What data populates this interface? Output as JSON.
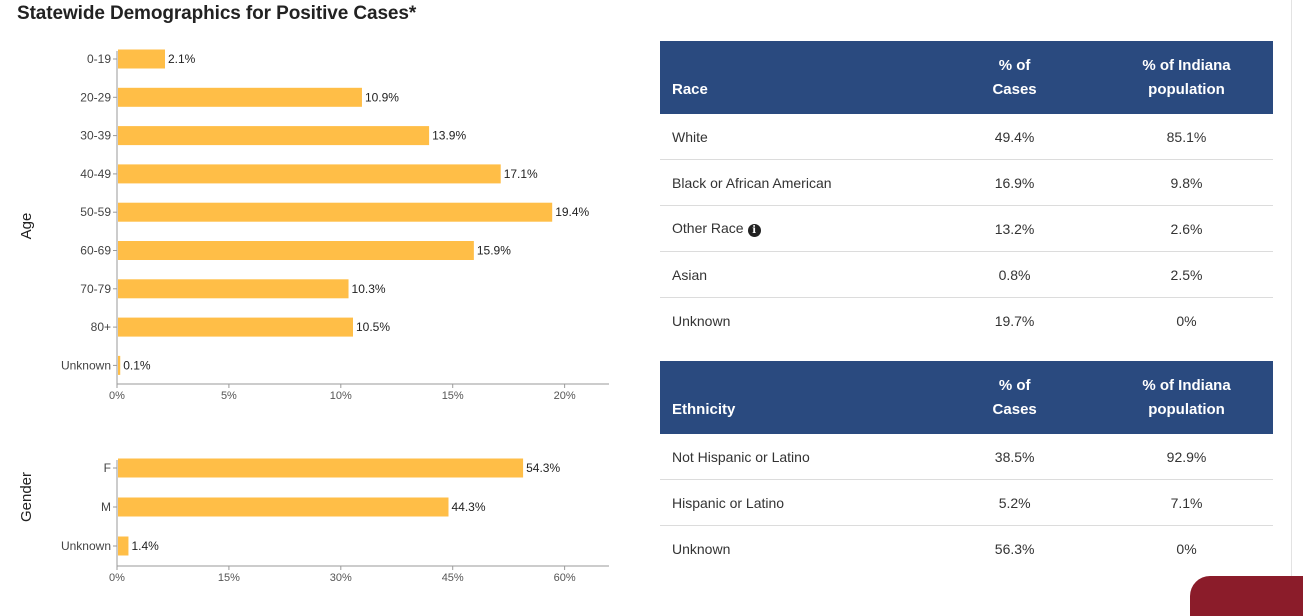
{
  "page": {
    "title": "Statewide Demographics for Positive Cases*"
  },
  "age_chart": {
    "axis_title": "Age",
    "bar_color": "#ffbe47"
  },
  "gender_chart": {
    "axis_title": "Gender",
    "bar_color": "#ffbe47"
  },
  "chart_data": [
    {
      "type": "bar",
      "orientation": "horizontal",
      "title": "",
      "ylabel": "Age",
      "categories": [
        "0-19",
        "20-29",
        "30-39",
        "40-49",
        "50-59",
        "60-69",
        "70-79",
        "80+",
        "Unknown"
      ],
      "values": [
        2.1,
        10.9,
        13.9,
        17.1,
        19.4,
        15.9,
        10.3,
        10.5,
        0.1
      ],
      "value_labels": [
        "2.1%",
        "10.9%",
        "13.9%",
        "17.1%",
        "19.4%",
        "15.9%",
        "10.3%",
        "10.5%",
        "0.1%"
      ],
      "xlim": [
        0,
        21
      ],
      "x_ticks": [
        0,
        5,
        10,
        15,
        20
      ],
      "x_tick_labels": [
        "0%",
        "5%",
        "10%",
        "15%",
        "20%"
      ],
      "grid": false
    },
    {
      "type": "bar",
      "orientation": "horizontal",
      "title": "",
      "ylabel": "Gender",
      "categories": [
        "F",
        "M",
        "Unknown"
      ],
      "values": [
        54.3,
        44.3,
        1.4
      ],
      "value_labels": [
        "54.3%",
        "44.3%",
        "1.4%"
      ],
      "xlim": [
        0,
        63
      ],
      "x_ticks": [
        0,
        15,
        30,
        45,
        60
      ],
      "x_tick_labels": [
        "0%",
        "15%",
        "30%",
        "45%",
        "60%"
      ],
      "grid": false
    }
  ],
  "race_table": {
    "headers": {
      "label": "Race",
      "cases": "% of Cases",
      "population": "% of Indiana population"
    },
    "header_color": "#2a4a7f",
    "rows": [
      {
        "label": "White",
        "cases": "49.4%",
        "population": "85.1%"
      },
      {
        "label": "Black or African American",
        "cases": "16.9%",
        "population": "9.8%"
      },
      {
        "label": "Other Race",
        "cases": "13.2%",
        "population": "2.6%",
        "icon": "info-icon"
      },
      {
        "label": "Asian",
        "cases": "0.8%",
        "population": "2.5%"
      },
      {
        "label": "Unknown",
        "cases": "19.7%",
        "population": "0%"
      }
    ]
  },
  "ethnicity_table": {
    "headers": {
      "label": "Ethnicity",
      "cases": "% of Cases",
      "population": "% of Indiana population"
    },
    "header_color": "#2a4a7f",
    "rows": [
      {
        "label": "Not Hispanic or Latino",
        "cases": "38.5%",
        "population": "92.9%"
      },
      {
        "label": "Hispanic or Latino",
        "cases": "5.2%",
        "population": "7.1%"
      },
      {
        "label": "Unknown",
        "cases": "56.3%",
        "population": "0%"
      }
    ]
  }
}
